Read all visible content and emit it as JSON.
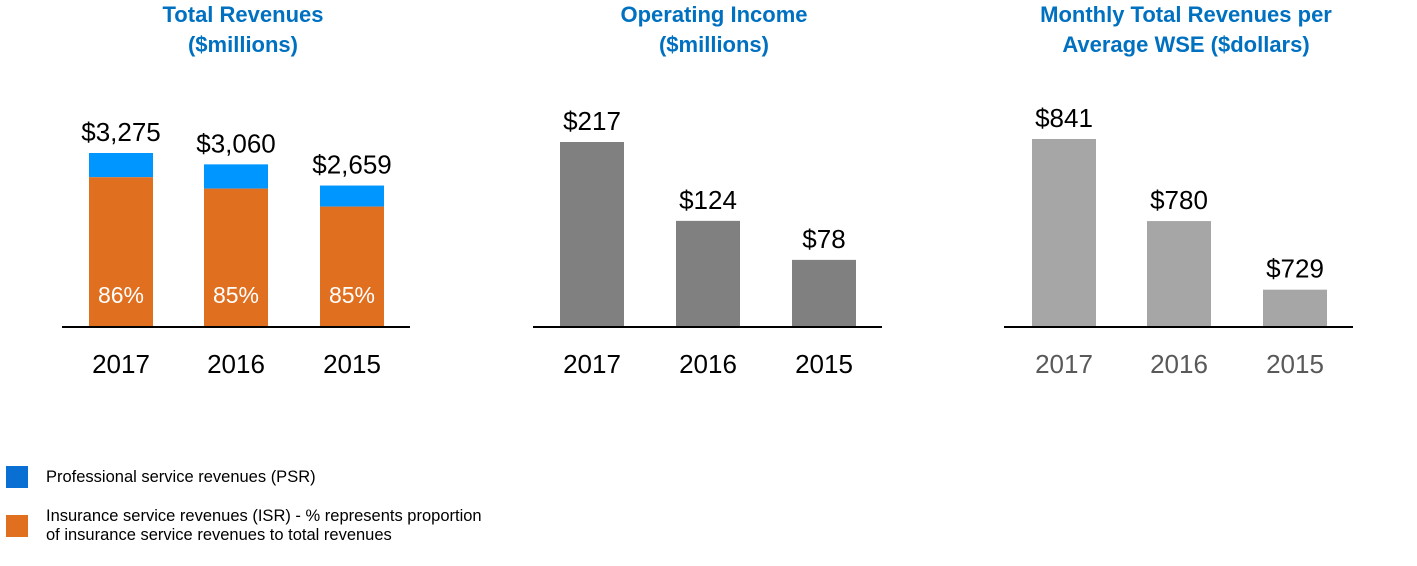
{
  "chart_data": [
    {
      "type": "bar",
      "stacked": true,
      "title": [
        "Total Revenues",
        "($millions)"
      ],
      "categories": [
        "2017",
        "2016",
        "2015"
      ],
      "totals": [
        3275,
        3060,
        2659
      ],
      "value_labels": [
        "$3,275",
        "$3,060",
        "$2,659"
      ],
      "isr_percent": [
        86,
        85,
        85
      ],
      "isr_labels": [
        "86%",
        "85%",
        "85%"
      ],
      "series": [
        {
          "name": "Insurance service revenues (ISR)",
          "color": "#e07020"
        },
        {
          "name": "Professional service revenues (PSR)",
          "color": "#0096ff"
        }
      ],
      "ylim": [
        0,
        3275
      ],
      "year_color": "#000000"
    },
    {
      "type": "bar",
      "title": [
        "Operating Income",
        "($millions)"
      ],
      "categories": [
        "2017",
        "2016",
        "2015"
      ],
      "values": [
        217,
        124,
        78
      ],
      "value_labels": [
        "$217",
        "$124",
        "$78"
      ],
      "color": "#808080",
      "ylim": [
        0,
        217
      ],
      "year_color": "#000000"
    },
    {
      "type": "bar",
      "title": [
        "Monthly Total Revenues per",
        "Average WSE ($dollars)"
      ],
      "categories": [
        "2017",
        "2016",
        "2015"
      ],
      "values": [
        841,
        780,
        729
      ],
      "value_labels": [
        "$841",
        "$780",
        "$729"
      ],
      "color": "#a6a6a6",
      "ylim": [
        702,
        841
      ],
      "year_color": "#595959"
    }
  ],
  "legend": {
    "items": [
      {
        "label": "Professional service revenues (PSR)",
        "color": "#0a6fd2"
      },
      {
        "label": "Insurance service revenues (ISR) - % represents proportion of insurance service revenues to total revenues",
        "color": "#e07020"
      }
    ]
  },
  "title_color": "#0070c0"
}
